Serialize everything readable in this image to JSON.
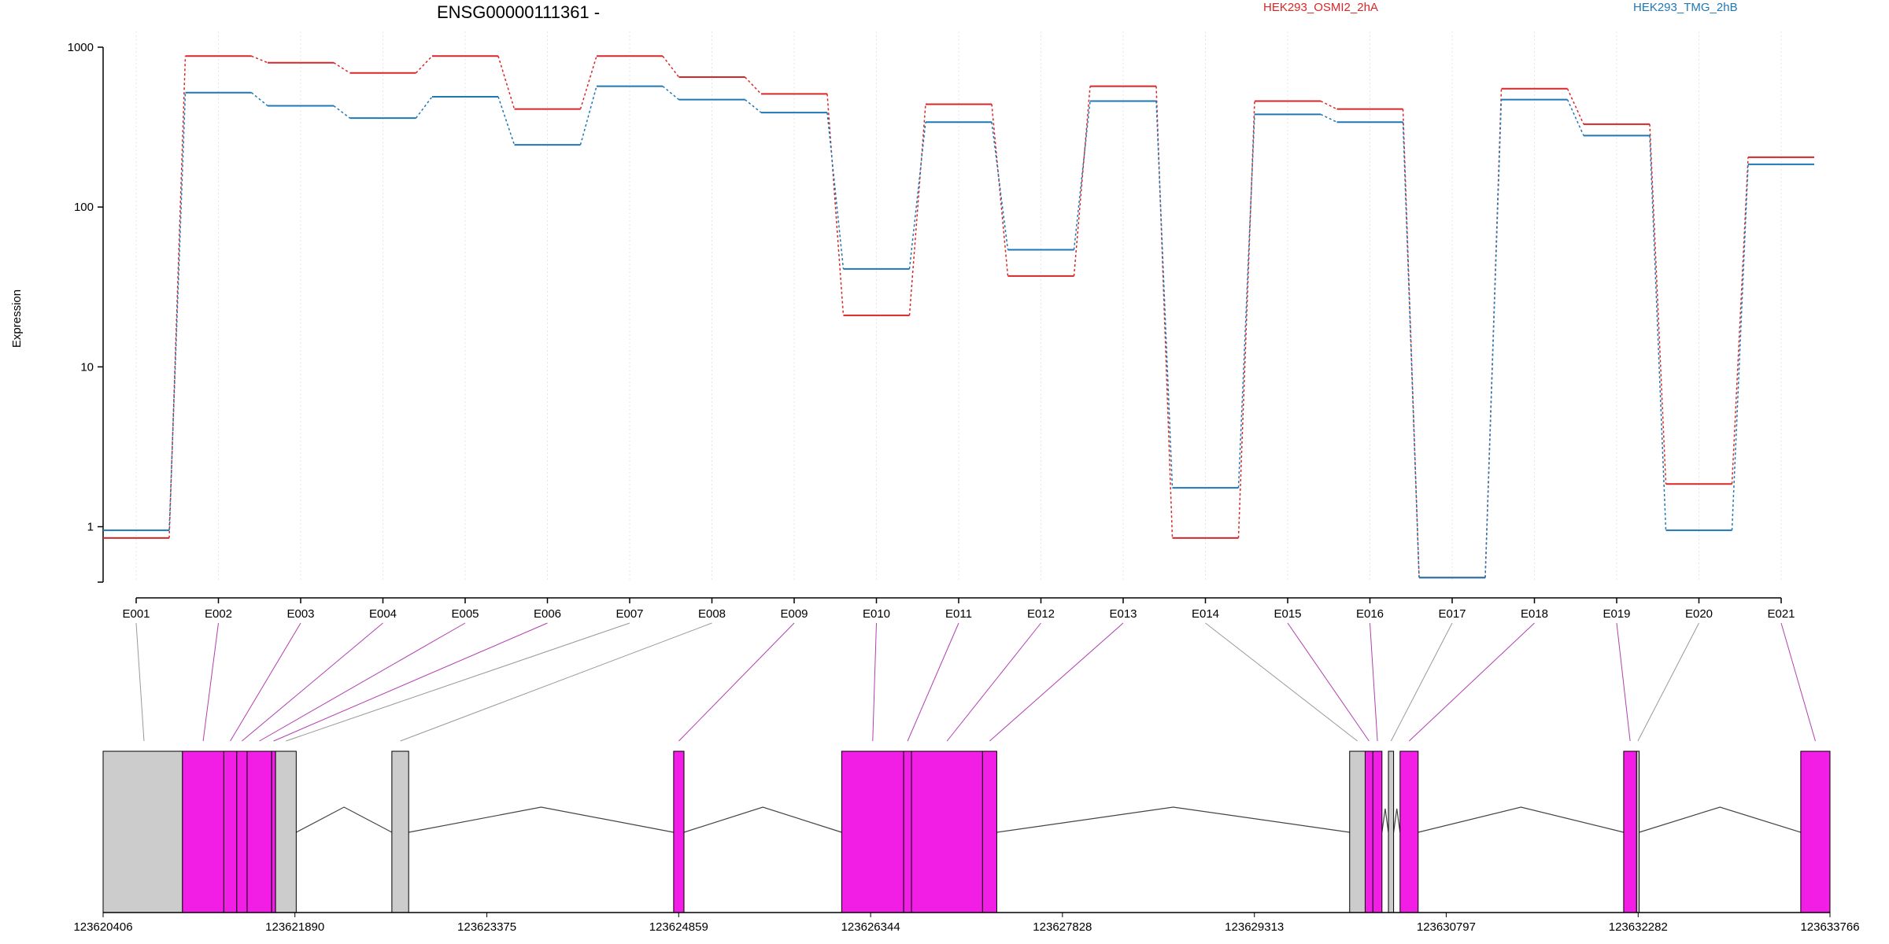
{
  "chart_data": {
    "type": "line",
    "title": "ENSG00000111361 -",
    "ylabel": "Expression",
    "xlabel": "",
    "yscale": "log",
    "ylim": [
      0.45,
      1000
    ],
    "yticks": [
      1,
      10,
      100,
      1000
    ],
    "ytick_labels": [
      "1",
      "10",
      "100",
      "1000"
    ],
    "grid": "vertical dotted",
    "legend_placement": "top",
    "categories": [
      "E001",
      "E002",
      "E003",
      "E004",
      "E005",
      "E006",
      "E007",
      "E008",
      "E009",
      "E010",
      "E011",
      "E012",
      "E013",
      "E014",
      "E015",
      "E016",
      "E017",
      "E018",
      "E019",
      "E020",
      "E021"
    ],
    "series": [
      {
        "name": "HEK293_OSMI2_2hA",
        "color": "#d62728",
        "values": [
          0.85,
          880,
          800,
          690,
          880,
          410,
          880,
          650,
          510,
          21,
          440,
          37,
          570,
          0.85,
          460,
          410,
          0.48,
          550,
          330,
          1.85,
          205
        ]
      },
      {
        "name": "HEK293_TMG_2hB",
        "color": "#1f77b4",
        "values": [
          0.95,
          520,
          430,
          360,
          490,
          245,
          570,
          470,
          390,
          41,
          340,
          54,
          460,
          1.75,
          380,
          340,
          0.48,
          470,
          280,
          0.95,
          185
        ]
      }
    ],
    "gene_model": {
      "genomic_range": [
        123620406,
        123633766
      ],
      "axis_ticks": [
        123620406,
        123621890,
        123623375,
        123624859,
        123626344,
        123627828,
        123629313,
        123630797,
        123632282,
        123633766
      ],
      "axis_tick_labels": [
        "123620406",
        "123621890",
        "123623375",
        "123624859",
        "123626344",
        "123627828",
        "123629313",
        "123630797",
        "123632282",
        "123633766"
      ],
      "exons": [
        {
          "id": "E001",
          "start": 123620406,
          "end": 123621020,
          "highlight": false
        },
        {
          "id": "E002",
          "start": 123621020,
          "end": 123621340,
          "highlight": true
        },
        {
          "id": "E003",
          "start": 123621340,
          "end": 123621440,
          "highlight": true
        },
        {
          "id": "E004",
          "start": 123621440,
          "end": 123621520,
          "highlight": true
        },
        {
          "id": "E005",
          "start": 123621520,
          "end": 123621710,
          "highlight": true
        },
        {
          "id": "E006",
          "start": 123621710,
          "end": 123621740,
          "highlight": true
        },
        {
          "id": "E007",
          "start": 123621740,
          "end": 123621900,
          "highlight": false
        },
        {
          "id": "E008",
          "start": 123622640,
          "end": 123622770,
          "highlight": false
        },
        {
          "id": "E009",
          "start": 123624820,
          "end": 123624900,
          "highlight": true
        },
        {
          "id": "E010",
          "start": 123626120,
          "end": 123626600,
          "highlight": true
        },
        {
          "id": "E011",
          "start": 123626600,
          "end": 123626660,
          "highlight": true
        },
        {
          "id": "E012",
          "start": 123626660,
          "end": 123627210,
          "highlight": true
        },
        {
          "id": "E013",
          "start": 123627210,
          "end": 123627320,
          "highlight": true
        },
        {
          "id": "E014",
          "start": 123630050,
          "end": 123630170,
          "highlight": false
        },
        {
          "id": "E015",
          "start": 123630170,
          "end": 123630230,
          "highlight": true
        },
        {
          "id": "E016",
          "start": 123630230,
          "end": 123630300,
          "highlight": true
        },
        {
          "id": "E017",
          "start": 123630350,
          "end": 123630390,
          "highlight": false
        },
        {
          "id": "E018",
          "start": 123630440,
          "end": 123630580,
          "highlight": true
        },
        {
          "id": "E019",
          "start": 123632170,
          "end": 123632270,
          "highlight": true
        },
        {
          "id": "E020",
          "start": 123632270,
          "end": 123632290,
          "highlight": false
        },
        {
          "id": "E021",
          "start": 123633540,
          "end": 123633766,
          "highlight": true
        }
      ],
      "exon_color": "#f21ee6",
      "other_color": "#cccccc"
    }
  }
}
